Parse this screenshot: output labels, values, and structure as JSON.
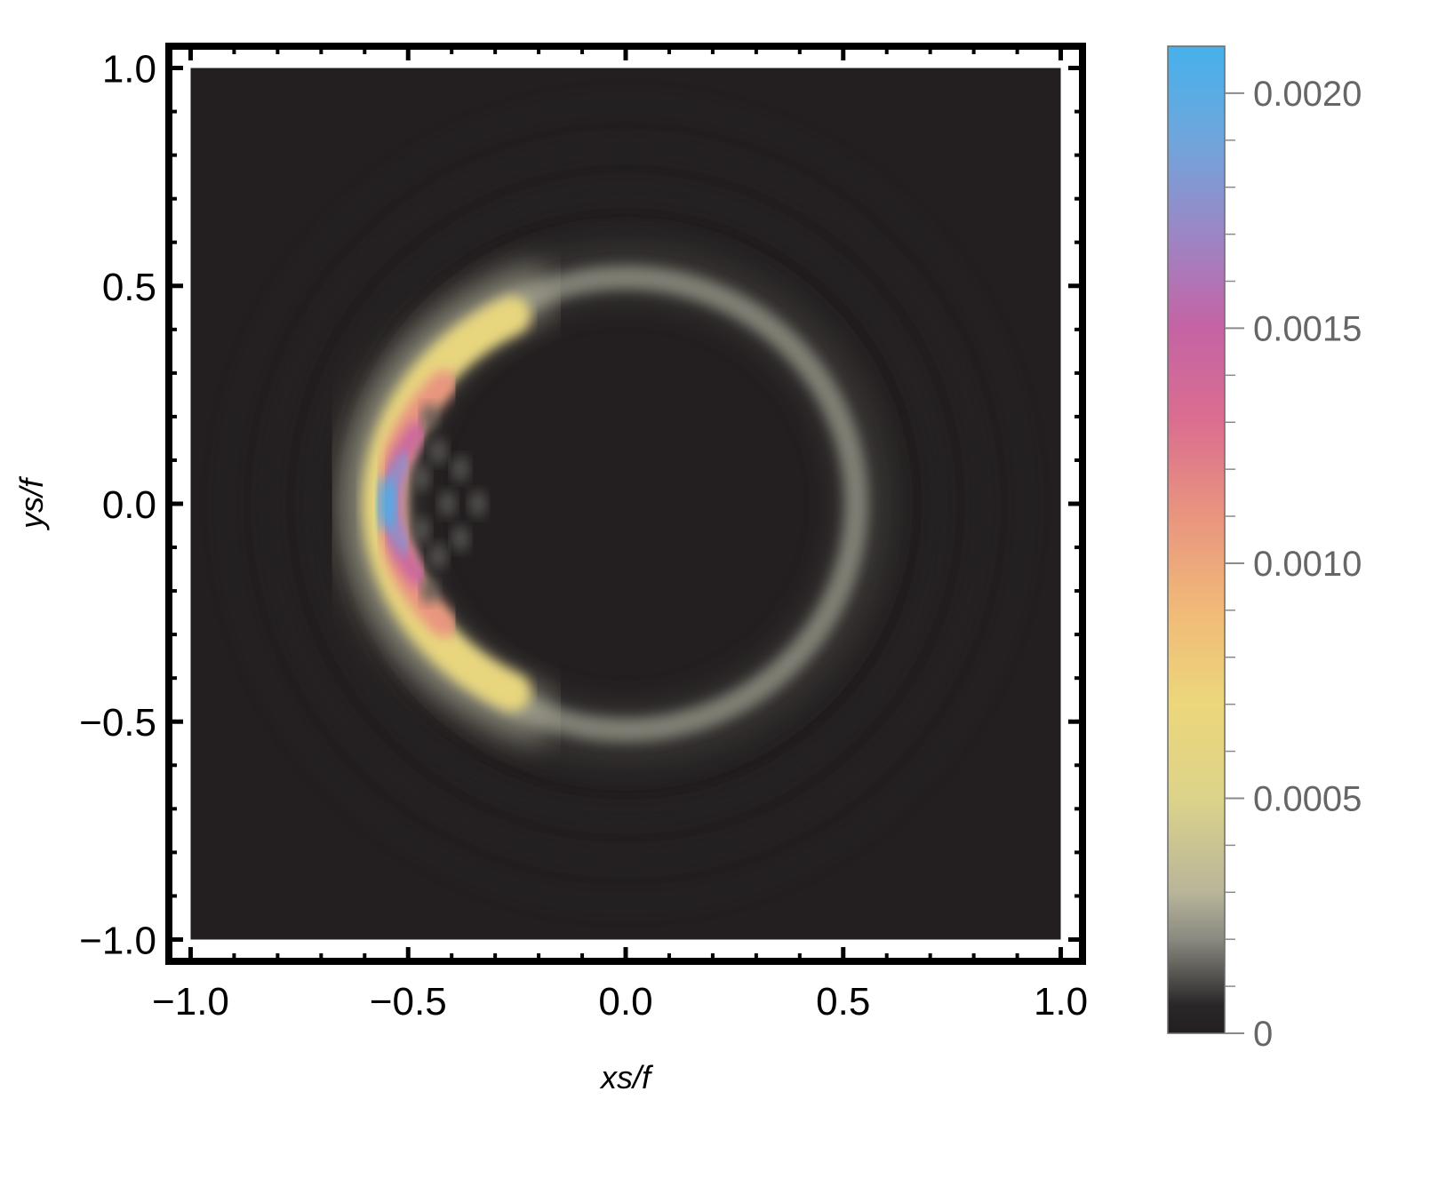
{
  "chart_data": {
    "type": "heatmap",
    "title": "",
    "xlabel": "xs/f",
    "ylabel": "ys/f",
    "xlim": [
      -1.05,
      1.05
    ],
    "ylim": [
      -1.05,
      1.05
    ],
    "data_extent": [
      -1.0,
      1.0
    ],
    "x_ticks": [
      -1.0,
      -0.5,
      0.0,
      0.5,
      1.0
    ],
    "y_ticks": [
      -1.0,
      -0.5,
      0.0,
      0.5,
      1.0
    ],
    "x_tick_labels": [
      "−1.0",
      "−0.5",
      "0.0",
      "0.5",
      "1.0"
    ],
    "y_tick_labels": [
      "−1.0",
      "−0.5",
      "0.0",
      "0.5",
      "1.0"
    ],
    "colorbar": {
      "range": [
        0,
        0.0021
      ],
      "ticks": [
        0,
        0.0005,
        0.001,
        0.0015,
        0.002
      ],
      "tick_labels": [
        "0",
        "0.0005",
        "0.0010",
        "0.0015",
        "0.0020"
      ],
      "stops": [
        {
          "value": 0.0,
          "color": "#231f20"
        },
        {
          "value": 6e-05,
          "color": "#2a2728"
        },
        {
          "value": 0.0002,
          "color": "#8a8a80"
        },
        {
          "value": 0.0003,
          "color": "#b8b59a"
        },
        {
          "value": 0.0005,
          "color": "#dcd38a"
        },
        {
          "value": 0.0007,
          "color": "#ecd77a"
        },
        {
          "value": 0.0009,
          "color": "#f0ba78"
        },
        {
          "value": 0.0011,
          "color": "#e9957f"
        },
        {
          "value": 0.0013,
          "color": "#db6e8f"
        },
        {
          "value": 0.0015,
          "color": "#c563a4"
        },
        {
          "value": 0.0017,
          "color": "#9c86c6"
        },
        {
          "value": 0.0019,
          "color": "#6fa6dc"
        },
        {
          "value": 0.0021,
          "color": "#46b1ec"
        }
      ]
    },
    "grid": false,
    "legend": "colorbar-right"
  }
}
